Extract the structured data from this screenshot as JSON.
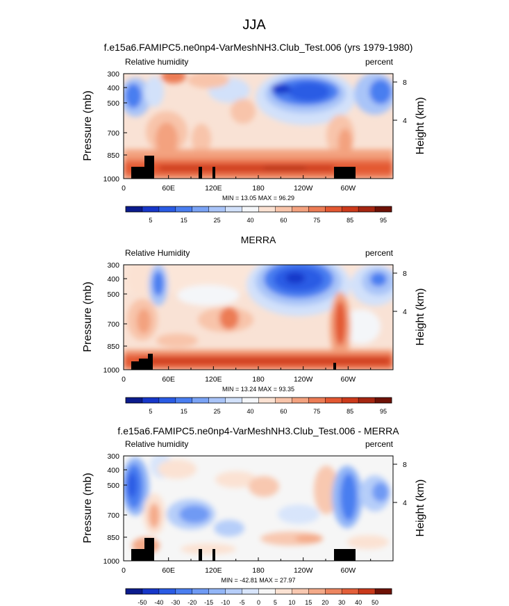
{
  "figure_title": "JJA",
  "chart_data": [
    {
      "type": "heatmap",
      "title": "f.e15a6.FAMIPC5.ne0np4-VarMeshNH3.Club_Test.006 (yrs 1979-1980)",
      "left_label": "Relative humidity",
      "right_label": "percent",
      "ylabel": "Pressure (mb)",
      "y2label": "Height (km)",
      "x_ticks": [
        "0",
        "60E",
        "120E",
        "180",
        "120W",
        "60W"
      ],
      "y_ticks": [
        "300",
        "400",
        "500",
        "700",
        "850",
        "1000"
      ],
      "y2_ticks": [
        "8",
        "4"
      ],
      "stats": "MIN =  13.05  MAX =  96.29",
      "min": 13.05,
      "max": 96.29,
      "colorbar": {
        "labels": [
          "5",
          "15",
          "25",
          "40",
          "60",
          "75",
          "85",
          "95"
        ],
        "colors": [
          "#0b1b8c",
          "#1737c9",
          "#2a5be4",
          "#4a7ef0",
          "#7aa3f5",
          "#a9c4f8",
          "#d2e1fa",
          "#f4f6f9",
          "#fbe2d3",
          "#f8c4aa",
          "#f3a27f",
          "#ec7c55",
          "#e35832",
          "#cc3a1b",
          "#a52611",
          "#6e1106"
        ]
      }
    },
    {
      "type": "heatmap",
      "title": "MERRA",
      "left_label": "Relative Humidity",
      "right_label": "percent",
      "ylabel": "Pressure (mb)",
      "y2label": "Height (km)",
      "x_ticks": [
        "0",
        "60E",
        "120E",
        "180",
        "120W",
        "60W"
      ],
      "y_ticks": [
        "300",
        "400",
        "500",
        "700",
        "850",
        "1000"
      ],
      "y2_ticks": [
        "8",
        "4"
      ],
      "stats": "MIN =  13.24  MAX =  93.35",
      "min": 13.24,
      "max": 93.35,
      "colorbar": {
        "labels": [
          "5",
          "15",
          "25",
          "40",
          "60",
          "75",
          "85",
          "95"
        ],
        "colors": [
          "#0b1b8c",
          "#1737c9",
          "#2a5be4",
          "#4a7ef0",
          "#7aa3f5",
          "#a9c4f8",
          "#d2e1fa",
          "#f4f6f9",
          "#fbe2d3",
          "#f8c4aa",
          "#f3a27f",
          "#ec7c55",
          "#e35832",
          "#cc3a1b",
          "#a52611",
          "#6e1106"
        ]
      }
    },
    {
      "type": "heatmap",
      "title": "f.e15a6.FAMIPC5.ne0np4-VarMeshNH3.Club_Test.006 - MERRA",
      "left_label": "Relative humidity",
      "right_label": "percent",
      "ylabel": "Pressure (mb)",
      "y2label": "Height (km)",
      "x_ticks": [
        "0",
        "60E",
        "120E",
        "180",
        "120W",
        "60W"
      ],
      "y_ticks": [
        "300",
        "400",
        "500",
        "700",
        "850",
        "1000"
      ],
      "y2_ticks": [
        "8",
        "4"
      ],
      "stats": "MIN = -42.81  MAX =  27.97",
      "min": -42.81,
      "max": 27.97,
      "colorbar": {
        "labels": [
          "-50",
          "-40",
          "-30",
          "-20",
          "-15",
          "-10",
          "-5",
          "0",
          "5",
          "10",
          "15",
          "20",
          "30",
          "40",
          "50"
        ],
        "colors": [
          "#0b1b8c",
          "#1737c9",
          "#2a5be4",
          "#4a7ef0",
          "#6f9af4",
          "#93b6f7",
          "#b6cef9",
          "#d8e5fb",
          "#f6f6f6",
          "#fbe2d3",
          "#f8c8b0",
          "#f4aa89",
          "#ed8660",
          "#e35f3a",
          "#c9391b",
          "#6e1106"
        ]
      }
    }
  ]
}
